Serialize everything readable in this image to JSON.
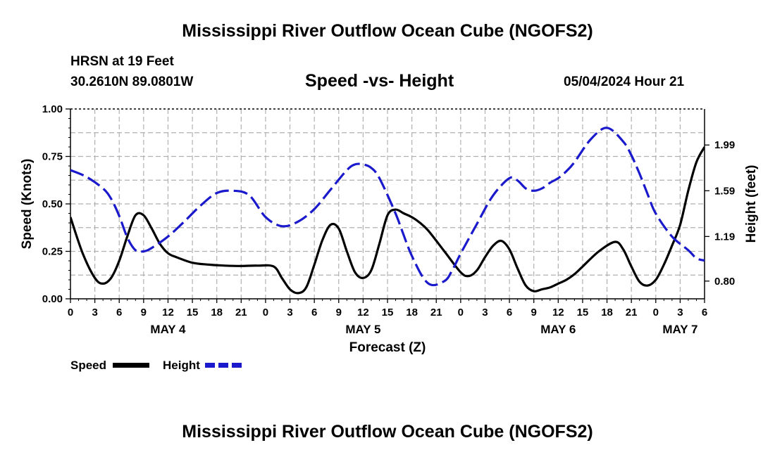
{
  "header": {
    "title": "Mississippi River Outflow Ocean Cube (NGOFS2)",
    "station": "HRSN at 19 Feet",
    "coords": "30.2610N  89.0801W",
    "subtitle": "Speed -vs- Height",
    "datetime": "05/04/2024 Hour 21"
  },
  "footer": {
    "title": "Mississippi River Outflow Ocean Cube (NGOFS2)"
  },
  "legend": {
    "speed_label": "Speed",
    "height_label": "Height",
    "speed_color": "#000000",
    "height_color": "#1a1acc"
  },
  "chart_data": {
    "type": "line",
    "xlabel": "Forecast (Z)",
    "ylabel_left": "Speed (Knots)",
    "ylabel_right": "Height (feet)",
    "xlim": [
      0,
      78
    ],
    "ylim_left": [
      0,
      1.0
    ],
    "ylim_right": [
      0.645,
      2.305
    ],
    "x_ticks": [
      0,
      3,
      6,
      9,
      12,
      15,
      18,
      21,
      24,
      27,
      30,
      33,
      36,
      39,
      42,
      45,
      48,
      51,
      54,
      57,
      60,
      63,
      66,
      69,
      72,
      75,
      78
    ],
    "x_tick_labels": [
      "0",
      "3",
      "6",
      "9",
      "12",
      "15",
      "18",
      "21",
      "0",
      "3",
      "6",
      "9",
      "12",
      "15",
      "18",
      "21",
      "0",
      "3",
      "6",
      "9",
      "12",
      "15",
      "18",
      "21",
      "0",
      "3",
      "6"
    ],
    "date_labels": [
      {
        "x": 12,
        "text": "MAY 4"
      },
      {
        "x": 36,
        "text": "MAY 5"
      },
      {
        "x": 60,
        "text": "MAY 6"
      },
      {
        "x": 75,
        "text": "MAY 7"
      }
    ],
    "left_ticks": [
      0.0,
      0.25,
      0.5,
      0.75,
      1.0
    ],
    "left_tick_labels": [
      "0.00",
      "0.25",
      "0.50",
      "0.75",
      "1.00"
    ],
    "right_ticks": [
      0.8,
      1.19,
      1.59,
      1.99
    ],
    "right_tick_labels": [
      "0.80",
      "1.19",
      "1.59",
      "1.99"
    ],
    "grid": true,
    "series": [
      {
        "name": "Speed",
        "axis": "left",
        "color": "#000000",
        "style": "solid",
        "x": [
          0,
          1.5,
          3,
          4,
          5,
          6,
          7,
          8,
          9,
          10,
          11,
          12,
          13,
          15,
          17,
          19,
          21,
          23,
          25,
          26,
          27,
          28,
          29,
          30,
          31,
          32,
          33,
          34,
          35,
          36,
          37,
          38,
          39,
          40,
          41,
          42,
          43,
          44,
          46,
          48,
          49,
          50,
          51,
          52,
          53,
          54,
          55,
          56,
          57,
          58,
          59,
          60,
          61,
          62,
          63,
          65,
          67,
          68,
          69,
          70,
          71,
          72,
          73,
          74,
          75,
          76,
          77,
          78
        ],
        "values": [
          0.43,
          0.24,
          0.11,
          0.08,
          0.11,
          0.2,
          0.33,
          0.44,
          0.44,
          0.37,
          0.29,
          0.24,
          0.22,
          0.19,
          0.18,
          0.175,
          0.173,
          0.175,
          0.17,
          0.11,
          0.05,
          0.03,
          0.06,
          0.18,
          0.31,
          0.39,
          0.37,
          0.25,
          0.14,
          0.11,
          0.15,
          0.29,
          0.44,
          0.47,
          0.45,
          0.43,
          0.4,
          0.36,
          0.25,
          0.14,
          0.12,
          0.15,
          0.22,
          0.28,
          0.305,
          0.26,
          0.16,
          0.07,
          0.04,
          0.05,
          0.06,
          0.08,
          0.1,
          0.13,
          0.17,
          0.25,
          0.3,
          0.26,
          0.17,
          0.09,
          0.07,
          0.1,
          0.18,
          0.28,
          0.39,
          0.57,
          0.72,
          0.8
        ]
      },
      {
        "name": "Height",
        "axis": "right",
        "color": "#1a1acc",
        "style": "dashed",
        "x": [
          0,
          2,
          4,
          5,
          6,
          7,
          8,
          9,
          10,
          12,
          14,
          16,
          18,
          20,
          22,
          24,
          26,
          28,
          30,
          32,
          34,
          35,
          36,
          37,
          38,
          40,
          42,
          44,
          46,
          47,
          48,
          50,
          52,
          54,
          55,
          56,
          57,
          58,
          59,
          60,
          61,
          62,
          64,
          66,
          68,
          69,
          70,
          71,
          72,
          74,
          76,
          77,
          78
        ],
        "values": [
          1.77,
          1.71,
          1.61,
          1.52,
          1.37,
          1.18,
          1.07,
          1.06,
          1.09,
          1.19,
          1.32,
          1.46,
          1.57,
          1.59,
          1.55,
          1.36,
          1.28,
          1.32,
          1.43,
          1.6,
          1.77,
          1.82,
          1.82,
          1.79,
          1.7,
          1.39,
          1.02,
          0.78,
          0.8,
          0.9,
          1.04,
          1.3,
          1.55,
          1.7,
          1.68,
          1.61,
          1.59,
          1.61,
          1.66,
          1.7,
          1.76,
          1.84,
          2.04,
          2.14,
          2.02,
          1.9,
          1.74,
          1.56,
          1.39,
          1.19,
          1.07,
          1.0,
          0.98
        ]
      }
    ]
  }
}
